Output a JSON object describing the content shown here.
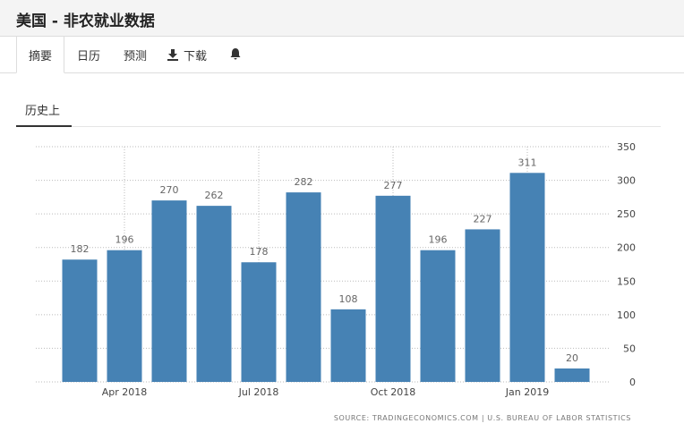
{
  "header": {
    "title": "美国 - 非农就业数据"
  },
  "tabs": [
    "摘要",
    "日历",
    "预测",
    "下载"
  ],
  "subtab": "历史上",
  "chart_data": {
    "type": "bar",
    "categories": [
      null,
      "Apr 2018",
      null,
      null,
      "Jul 2018",
      null,
      null,
      "Oct 2018",
      null,
      null,
      "Jan 2019",
      null
    ],
    "values": [
      182,
      196,
      270,
      262,
      178,
      282,
      108,
      277,
      196,
      227,
      311,
      20
    ],
    "color": "#4682b4",
    "ylim": [
      0,
      350
    ],
    "yticks": [
      0,
      50,
      100,
      150,
      200,
      250,
      300,
      350
    ],
    "grid": true,
    "source": "SOURCE: TRADINGECONOMICS.COM | U.S. BUREAU OF LABOR STATISTICS"
  }
}
